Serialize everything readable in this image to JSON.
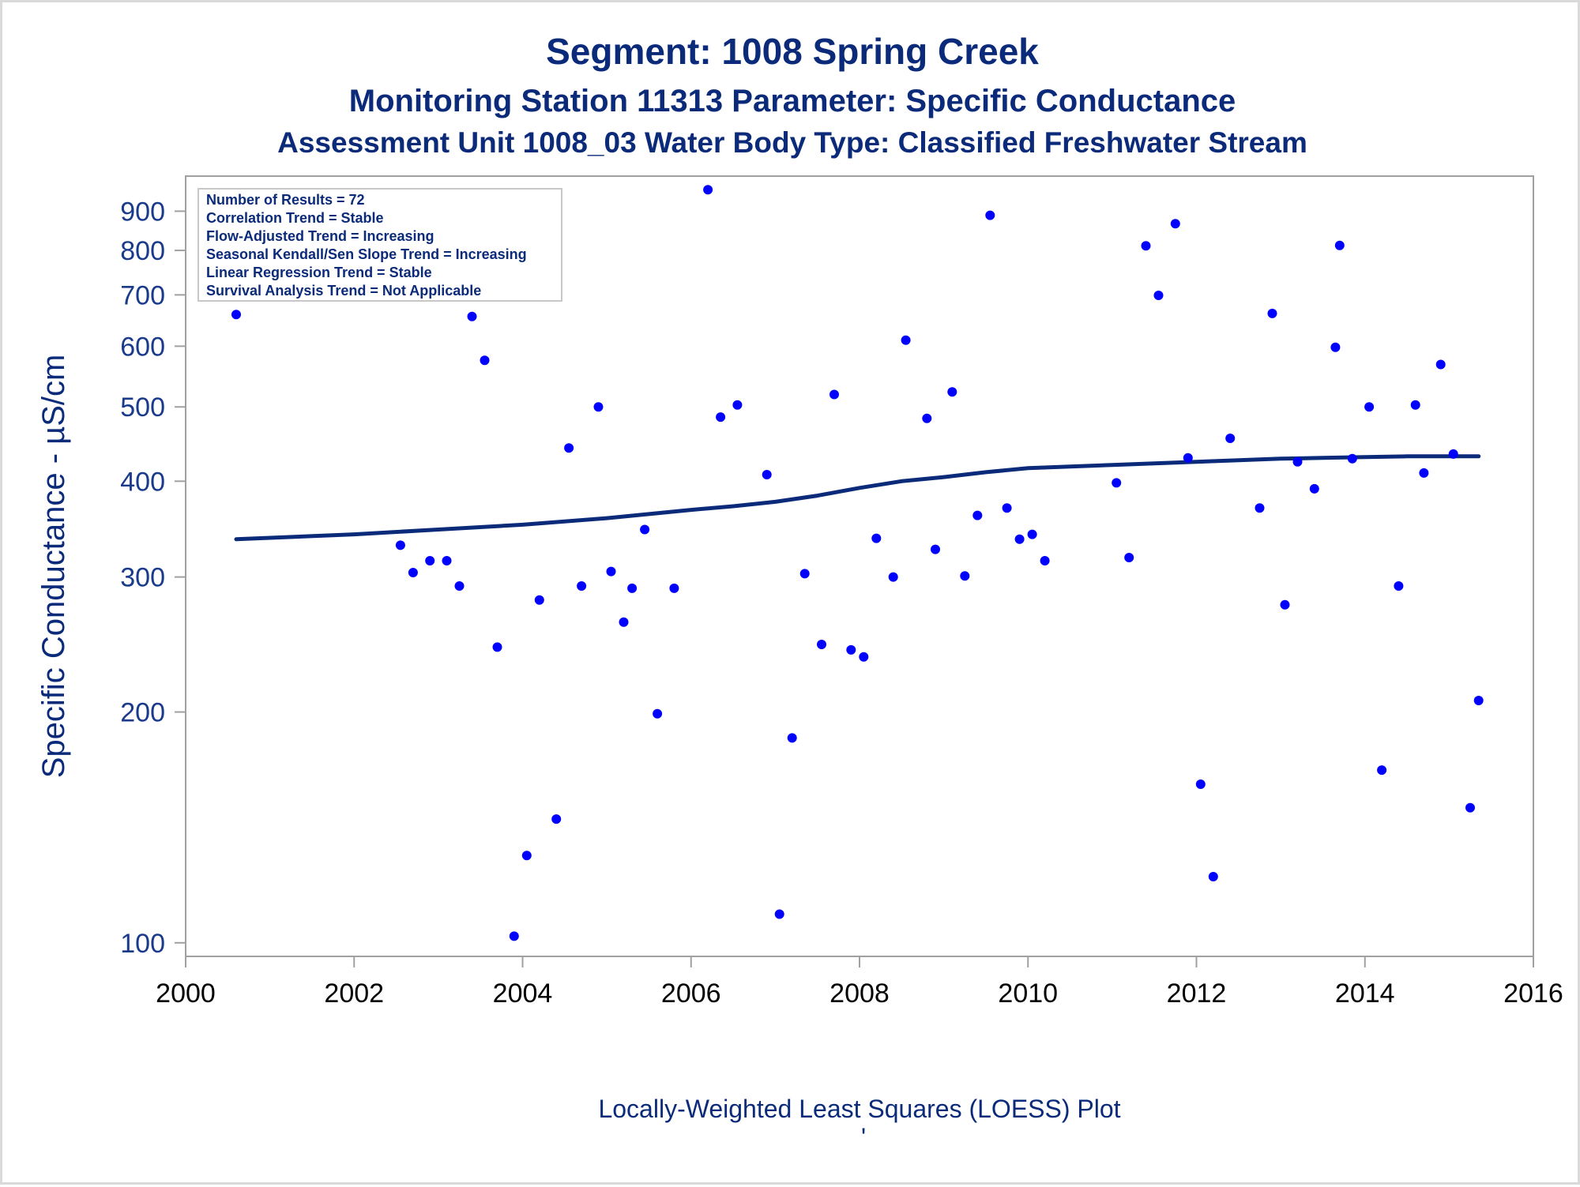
{
  "titles": {
    "line1": "Segment: 1008  Spring Creek",
    "line2": "Monitoring Station 11313 Parameter: Specific Conductance",
    "line3": "Assessment Unit 1008_03   Water Body Type: Classified Freshwater Stream"
  },
  "legend": [
    "Number of Results = 72",
    "Correlation Trend = Stable",
    "Flow-Adjusted Trend = Increasing",
    "Seasonal Kendall/Sen Slope Trend = Increasing",
    "Linear Regression Trend = Stable",
    "Survival Analysis Trend = Not Applicable"
  ],
  "footnote": "Locally-Weighted Least Squares (LOESS) Plot",
  "footnote_mark": "'",
  "colors": {
    "points": "#0000ff",
    "loess": "#0b2b7a",
    "text": "#0b2b7a",
    "axis": "#a0a0a0"
  },
  "chart_data": {
    "type": "scatter",
    "ylabel": "Specific Conductance -  µS/cm",
    "xlabel": "",
    "yscale": "log",
    "xlim": [
      2000,
      2016
    ],
    "ylim": [
      96,
      1000
    ],
    "xticks": [
      "2000",
      "2002",
      "2004",
      "2006",
      "2008",
      "2010",
      "2012",
      "2014",
      "2016"
    ],
    "yticks": [
      100,
      200,
      300,
      400,
      500,
      600,
      700,
      800,
      900
    ],
    "points": [
      {
        "x": 2000.6,
        "y": 660
      },
      {
        "x": 2002.55,
        "y": 330
      },
      {
        "x": 2002.7,
        "y": 304
      },
      {
        "x": 2002.9,
        "y": 315
      },
      {
        "x": 2003.1,
        "y": 315
      },
      {
        "x": 2003.25,
        "y": 292
      },
      {
        "x": 2003.4,
        "y": 656
      },
      {
        "x": 2003.55,
        "y": 575
      },
      {
        "x": 2003.7,
        "y": 243
      },
      {
        "x": 2003.9,
        "y": 102
      },
      {
        "x": 2004.05,
        "y": 130
      },
      {
        "x": 2004.2,
        "y": 280
      },
      {
        "x": 2004.4,
        "y": 145
      },
      {
        "x": 2004.55,
        "y": 442
      },
      {
        "x": 2004.7,
        "y": 292
      },
      {
        "x": 2004.9,
        "y": 500
      },
      {
        "x": 2005.05,
        "y": 305
      },
      {
        "x": 2005.2,
        "y": 262
      },
      {
        "x": 2005.3,
        "y": 290
      },
      {
        "x": 2005.45,
        "y": 346
      },
      {
        "x": 2005.6,
        "y": 199
      },
      {
        "x": 2005.8,
        "y": 290
      },
      {
        "x": 2006.2,
        "y": 960
      },
      {
        "x": 2006.35,
        "y": 485
      },
      {
        "x": 2006.55,
        "y": 503
      },
      {
        "x": 2006.9,
        "y": 408
      },
      {
        "x": 2007.05,
        "y": 109
      },
      {
        "x": 2007.2,
        "y": 185
      },
      {
        "x": 2007.35,
        "y": 303
      },
      {
        "x": 2007.55,
        "y": 245
      },
      {
        "x": 2007.7,
        "y": 519
      },
      {
        "x": 2007.9,
        "y": 241
      },
      {
        "x": 2008.05,
        "y": 236
      },
      {
        "x": 2008.2,
        "y": 337
      },
      {
        "x": 2008.4,
        "y": 300
      },
      {
        "x": 2008.55,
        "y": 611
      },
      {
        "x": 2008.8,
        "y": 483
      },
      {
        "x": 2008.9,
        "y": 326
      },
      {
        "x": 2009.1,
        "y": 523
      },
      {
        "x": 2009.25,
        "y": 301
      },
      {
        "x": 2009.4,
        "y": 361
      },
      {
        "x": 2009.55,
        "y": 889
      },
      {
        "x": 2009.75,
        "y": 369
      },
      {
        "x": 2009.9,
        "y": 336
      },
      {
        "x": 2010.05,
        "y": 341
      },
      {
        "x": 2010.2,
        "y": 315
      },
      {
        "x": 2011.05,
        "y": 398
      },
      {
        "x": 2011.2,
        "y": 318
      },
      {
        "x": 2011.4,
        "y": 811
      },
      {
        "x": 2011.55,
        "y": 699
      },
      {
        "x": 2011.75,
        "y": 867
      },
      {
        "x": 2011.9,
        "y": 429
      },
      {
        "x": 2012.05,
        "y": 161
      },
      {
        "x": 2012.2,
        "y": 122
      },
      {
        "x": 2012.4,
        "y": 455
      },
      {
        "x": 2012.75,
        "y": 369
      },
      {
        "x": 2012.9,
        "y": 662
      },
      {
        "x": 2013.05,
        "y": 276
      },
      {
        "x": 2013.2,
        "y": 424
      },
      {
        "x": 2013.4,
        "y": 391
      },
      {
        "x": 2013.65,
        "y": 598
      },
      {
        "x": 2013.7,
        "y": 812
      },
      {
        "x": 2013.85,
        "y": 428
      },
      {
        "x": 2014.05,
        "y": 500
      },
      {
        "x": 2014.2,
        "y": 168
      },
      {
        "x": 2014.4,
        "y": 292
      },
      {
        "x": 2014.6,
        "y": 503
      },
      {
        "x": 2014.7,
        "y": 410
      },
      {
        "x": 2014.9,
        "y": 568
      },
      {
        "x": 2015.05,
        "y": 434
      },
      {
        "x": 2015.25,
        "y": 150
      },
      {
        "x": 2015.35,
        "y": 207
      }
    ],
    "loess": [
      {
        "x": 2000.6,
        "y": 336
      },
      {
        "x": 2002.0,
        "y": 341
      },
      {
        "x": 2003.0,
        "y": 346
      },
      {
        "x": 2004.0,
        "y": 351
      },
      {
        "x": 2005.0,
        "y": 358
      },
      {
        "x": 2006.0,
        "y": 367
      },
      {
        "x": 2006.5,
        "y": 371
      },
      {
        "x": 2007.0,
        "y": 376
      },
      {
        "x": 2007.5,
        "y": 383
      },
      {
        "x": 2008.0,
        "y": 392
      },
      {
        "x": 2008.5,
        "y": 400
      },
      {
        "x": 2009.0,
        "y": 405
      },
      {
        "x": 2009.5,
        "y": 411
      },
      {
        "x": 2010.0,
        "y": 416
      },
      {
        "x": 2010.5,
        "y": 418
      },
      {
        "x": 2011.0,
        "y": 420
      },
      {
        "x": 2011.5,
        "y": 422
      },
      {
        "x": 2012.0,
        "y": 424
      },
      {
        "x": 2012.5,
        "y": 426
      },
      {
        "x": 2013.0,
        "y": 428
      },
      {
        "x": 2013.5,
        "y": 429
      },
      {
        "x": 2014.0,
        "y": 430
      },
      {
        "x": 2014.5,
        "y": 431
      },
      {
        "x": 2015.0,
        "y": 431
      },
      {
        "x": 2015.35,
        "y": 431
      }
    ]
  }
}
